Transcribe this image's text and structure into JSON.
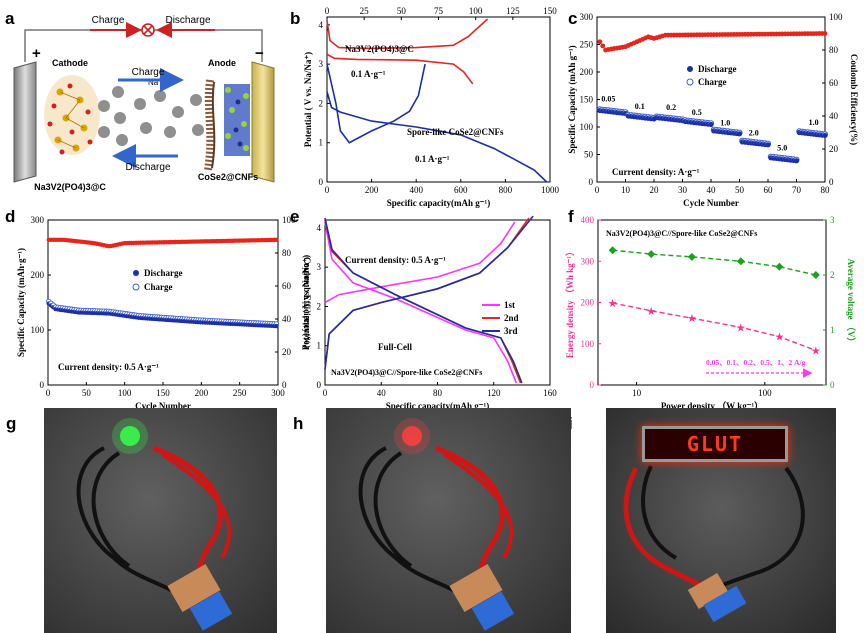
{
  "panel_letters": [
    "a",
    "b",
    "c",
    "d",
    "e",
    "f",
    "g",
    "h",
    "i"
  ],
  "schematic": {
    "charge": "Charge",
    "discharge": "Discharge",
    "plus": "+",
    "minus": "−",
    "cathode": "Cathode",
    "anode": "Anode",
    "na_ion": "Na",
    "na_sup": "+",
    "cathode_material": "Na3V2(PO4)3@C",
    "anode_material": "CoSe2@CNFs"
  },
  "photos": {
    "led_text": "GLUT"
  },
  "colors": {
    "charge": "#3366cc",
    "discharge": "#cc2222",
    "series_red": "#e8251b",
    "series_blue": "#1c2fa8",
    "magenta": "#ff33ff",
    "green": "#1aa31a",
    "pink": "#ff2f92"
  },
  "chart_data": [
    {
      "id": "b",
      "type": "line",
      "xlabel": "Specific capacity(mAh g⁻¹)",
      "ylabel": "Potential ( V vs. Na/Na⁺)",
      "xlim": [
        0,
        1000
      ],
      "ylim": [
        0,
        4.2
      ],
      "xticks": [
        0,
        200,
        400,
        600,
        800,
        1000
      ],
      "yticks": [
        0,
        1,
        2,
        3,
        4
      ],
      "top_xlim": [
        0,
        150
      ],
      "top_xticks": [
        0,
        25,
        50,
        75,
        100,
        125,
        150
      ],
      "annotations": [
        "Na3V2(PO4)3@C",
        "0.1 A·g⁻¹",
        "Spore-like CoSe2@CNFs",
        "0.1 A·g⁻¹"
      ],
      "series": [
        {
          "axis": "top",
          "color": "#e8251b",
          "points": [
            [
              0,
              4.1
            ],
            [
              2,
              3.6
            ],
            [
              8,
              3.42
            ],
            [
              30,
              3.4
            ],
            [
              60,
              3.42
            ],
            [
              85,
              3.48
            ],
            [
              95,
              3.7
            ],
            [
              108,
              4.15
            ]
          ]
        },
        {
          "axis": "top",
          "color": "#e8251b",
          "points": [
            [
              0,
              3.25
            ],
            [
              5,
              3.15
            ],
            [
              20,
              3.12
            ],
            [
              60,
              3.1
            ],
            [
              85,
              3.0
            ],
            [
              92,
              2.8
            ],
            [
              98,
              2.5
            ]
          ]
        },
        {
          "axis": "bottom",
          "color": "#1c2fa8",
          "points": [
            [
              0,
              3.0
            ],
            [
              40,
              2.0
            ],
            [
              60,
              1.3
            ],
            [
              100,
              1.0
            ],
            [
              200,
              1.3
            ],
            [
              300,
              1.55
            ],
            [
              370,
              1.8
            ],
            [
              410,
              2.2
            ],
            [
              440,
              3.0
            ]
          ]
        },
        {
          "axis": "bottom",
          "color": "#1c2fa8",
          "points": [
            [
              0,
              2.3
            ],
            [
              20,
              1.9
            ],
            [
              60,
              1.78
            ],
            [
              200,
              1.55
            ],
            [
              400,
              1.4
            ],
            [
              600,
              1.2
            ],
            [
              750,
              0.85
            ],
            [
              850,
              0.55
            ],
            [
              930,
              0.3
            ],
            [
              985,
              0.0
            ]
          ]
        }
      ]
    },
    {
      "id": "c",
      "type": "scatter",
      "xlabel": "Cycle Number",
      "ylabel": "Specific Capacity (mAh g⁻¹)",
      "y2label": "Coulomb Efficiency(%)",
      "xlim": [
        0,
        80
      ],
      "ylim": [
        0,
        300
      ],
      "y2lim": [
        0,
        100
      ],
      "xticks": [
        0,
        10,
        20,
        30,
        40,
        50,
        60,
        70,
        80
      ],
      "yticks": [
        0,
        50,
        100,
        150,
        200,
        250,
        300
      ],
      "y2ticks": [
        0,
        20,
        40,
        60,
        80,
        100
      ],
      "legend": [
        "Discharge",
        "Charge"
      ],
      "legend_position": "center-right",
      "annotation": "Current density: A·g⁻¹",
      "rate_labels": [
        {
          "x": 4,
          "y": 146,
          "text": "0.05"
        },
        {
          "x": 15,
          "y": 133,
          "text": "0.1"
        },
        {
          "x": 26,
          "y": 131,
          "text": "0.2"
        },
        {
          "x": 35,
          "y": 122,
          "text": "0.5"
        },
        {
          "x": 45,
          "y": 103,
          "text": "1.0"
        },
        {
          "x": 55,
          "y": 85,
          "text": "2.0"
        },
        {
          "x": 65,
          "y": 57,
          "text": "5.0"
        },
        {
          "x": 76,
          "y": 104,
          "text": "1.0"
        }
      ],
      "steps": [
        {
          "from": 1,
          "to": 10,
          "value": 130
        },
        {
          "from": 11,
          "to": 20,
          "value": 120
        },
        {
          "from": 21,
          "to": 30,
          "value": 117
        },
        {
          "from": 31,
          "to": 40,
          "value": 110
        },
        {
          "from": 41,
          "to": 50,
          "value": 93
        },
        {
          "from": 51,
          "to": 60,
          "value": 73
        },
        {
          "from": 61,
          "to": 70,
          "value": 44
        },
        {
          "from": 71,
          "to": 80,
          "value": 90
        }
      ],
      "ce_profile": [
        [
          1,
          85
        ],
        [
          3,
          80
        ],
        [
          10,
          82
        ],
        [
          18,
          88
        ],
        [
          20,
          87
        ],
        [
          24,
          89
        ],
        [
          80,
          90
        ]
      ]
    },
    {
      "id": "d",
      "type": "scatter",
      "xlabel": "Cycle Number",
      "ylabel": "Specific Capacity (mAh·g⁻¹)",
      "y2label": "Coulomb Efficiency(%)",
      "xlim": [
        0,
        300
      ],
      "ylim": [
        0,
        300
      ],
      "y2lim": [
        0,
        100
      ],
      "xticks": [
        0,
        50,
        100,
        150,
        200,
        250,
        300
      ],
      "yticks": [
        0,
        100,
        200,
        300
      ],
      "y2ticks": [
        0,
        20,
        40,
        60,
        80,
        100
      ],
      "legend": [
        "Discharge",
        "Charge"
      ],
      "legend_position": "center",
      "annotation": "Current density: 0.5 A·g⁻¹",
      "capacity_profile": [
        [
          1,
          148
        ],
        [
          10,
          138
        ],
        [
          40,
          132
        ],
        [
          80,
          130
        ],
        [
          120,
          122
        ],
        [
          200,
          114
        ],
        [
          300,
          107
        ]
      ],
      "ce_profile": [
        [
          1,
          88
        ],
        [
          20,
          88
        ],
        [
          60,
          86
        ],
        [
          80,
          84
        ],
        [
          100,
          86
        ],
        [
          300,
          88
        ]
      ]
    },
    {
      "id": "e",
      "type": "line",
      "xlabel": "Specific capacity(mAh g⁻¹)",
      "ylabel": "Potential ( V vs. Na/Na⁺)",
      "xlim": [
        0,
        160
      ],
      "ylim": [
        0,
        4.2
      ],
      "xticks": [
        0,
        40,
        80,
        120,
        160
      ],
      "yticks": [
        0,
        1,
        2,
        3,
        4
      ],
      "annotations": [
        "Current density: 0.5 A·g⁻¹",
        "Full-Cell",
        "Na3V2(PO4)3@C//Spore-like CoSe2@CNFs"
      ],
      "series": [
        {
          "name": "1st",
          "color": "#ff33ff",
          "charge": [
            [
              0,
              2.1
            ],
            [
              10,
              2.3
            ],
            [
              40,
              2.5
            ],
            [
              80,
              2.75
            ],
            [
              110,
              3.1
            ],
            [
              125,
              3.6
            ],
            [
              135,
              4.15
            ]
          ],
          "discharge": [
            [
              0,
              4.15
            ],
            [
              5,
              3.2
            ],
            [
              20,
              2.6
            ],
            [
              50,
              2.2
            ],
            [
              100,
              1.4
            ],
            [
              120,
              1.2
            ],
            [
              130,
              0.6
            ],
            [
              136,
              0.05
            ]
          ]
        },
        {
          "name": "2nd",
          "color": "#e8251b",
          "charge": [
            [
              0,
              0.4
            ],
            [
              3,
              1.3
            ],
            [
              20,
              1.9
            ],
            [
              40,
              2.1
            ],
            [
              80,
              2.45
            ],
            [
              110,
              2.85
            ],
            [
              130,
              3.5
            ],
            [
              145,
              4.25
            ]
          ],
          "discharge": [
            [
              0,
              4.2
            ],
            [
              5,
              3.4
            ],
            [
              20,
              2.85
            ],
            [
              50,
              2.3
            ],
            [
              100,
              1.45
            ],
            [
              125,
              1.2
            ],
            [
              133,
              0.6
            ],
            [
              139,
              0.05
            ]
          ]
        },
        {
          "name": "3rd",
          "color": "#1c2fa8",
          "charge": [
            [
              0,
              0.4
            ],
            [
              3,
              1.3
            ],
            [
              20,
              1.9
            ],
            [
              40,
              2.1
            ],
            [
              80,
              2.45
            ],
            [
              110,
              2.85
            ],
            [
              130,
              3.5
            ],
            [
              148,
              4.3
            ]
          ],
          "discharge": [
            [
              0,
              4.25
            ],
            [
              5,
              3.45
            ],
            [
              20,
              2.85
            ],
            [
              50,
              2.3
            ],
            [
              100,
              1.45
            ],
            [
              125,
              1.2
            ],
            [
              134,
              0.6
            ],
            [
              140,
              0.05
            ]
          ]
        }
      ]
    },
    {
      "id": "f",
      "type": "line",
      "title": "Na3V2(PO4)3@C//Spore-like CoSe2@CNFs",
      "xlabel": "Power density （W kg⁻¹）",
      "ylabel": "Energy density （Wh kg⁻¹）",
      "y2label": "Average voltage （V）",
      "xscale": "log",
      "xlim": [
        5,
        300
      ],
      "ylim": [
        0,
        400
      ],
      "y2lim": [
        0,
        3
      ],
      "xticks": [
        10,
        100
      ],
      "yticks": [
        0,
        100,
        200,
        300,
        400
      ],
      "y2ticks": [
        0,
        1,
        2,
        3
      ],
      "annotation": "0.05、0.1、0.2、0.5、1、2 A/g",
      "x": [
        6.5,
        13,
        27,
        65,
        130,
        250
      ],
      "series": [
        {
          "name": "Energy density",
          "color": "#ff2f92",
          "marker": "star",
          "axis": "left",
          "values": [
            199,
            180,
            162,
            140,
            117,
            84
          ]
        },
        {
          "name": "Average voltage",
          "color": "#1aa31a",
          "marker": "diamond",
          "axis": "right",
          "values": [
            2.45,
            2.38,
            2.33,
            2.25,
            2.15,
            2.0
          ]
        }
      ]
    }
  ]
}
